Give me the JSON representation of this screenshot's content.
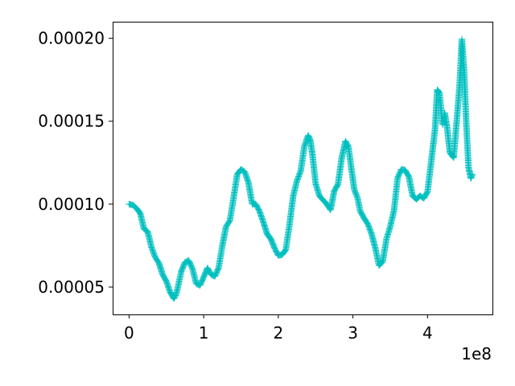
{
  "chart_data": {
    "type": "line",
    "title": "",
    "xlabel": "",
    "ylabel": "",
    "x_offset_label": "1e8",
    "xlim": [
      -0.22,
      4.87
    ],
    "ylim": [
      3.35e-05,
      0.00021
    ],
    "x_ticks": [
      0,
      1,
      2,
      3,
      4
    ],
    "x_tick_labels": [
      "0",
      "1",
      "2",
      "3",
      "4"
    ],
    "y_ticks": [
      5e-05,
      0.0001,
      0.00015,
      0.0002
    ],
    "y_tick_labels": [
      "0.00005",
      "0.00010",
      "0.00015",
      "0.00020"
    ],
    "grid": false,
    "legend": "none",
    "series": [
      {
        "color": "#00bfbf",
        "marker": "plus",
        "x_unit_note": "x in units of 1e8",
        "x": [
          0.0,
          0.05,
          0.1,
          0.15,
          0.2,
          0.25,
          0.3,
          0.35,
          0.4,
          0.45,
          0.5,
          0.55,
          0.6,
          0.63,
          0.66,
          0.7,
          0.75,
          0.8,
          0.85,
          0.9,
          0.95,
          1.0,
          1.05,
          1.1,
          1.15,
          1.2,
          1.25,
          1.3,
          1.35,
          1.4,
          1.45,
          1.5,
          1.55,
          1.6,
          1.65,
          1.7,
          1.75,
          1.8,
          1.85,
          1.9,
          1.95,
          2.0,
          2.05,
          2.1,
          2.15,
          2.2,
          2.25,
          2.3,
          2.35,
          2.4,
          2.43,
          2.46,
          2.5,
          2.55,
          2.6,
          2.65,
          2.7,
          2.75,
          2.8,
          2.85,
          2.9,
          2.94,
          2.98,
          3.02,
          3.06,
          3.1,
          3.15,
          3.2,
          3.25,
          3.3,
          3.35,
          3.4,
          3.45,
          3.5,
          3.55,
          3.6,
          3.65,
          3.7,
          3.75,
          3.8,
          3.85,
          3.9,
          3.95,
          4.0,
          4.05,
          4.1,
          4.13,
          4.16,
          4.2,
          4.23,
          4.26,
          4.3,
          4.35,
          4.4,
          4.43,
          4.46,
          4.49,
          4.52,
          4.55,
          4.58,
          4.6
        ],
        "y": [
          0.0001,
          9.95e-05,
          9.75e-05,
          9.45e-05,
          8.5e-05,
          8.35e-05,
          7.4e-05,
          6.8e-05,
          6.45e-05,
          5.75e-05,
          5.35e-05,
          4.7e-05,
          4.3e-05,
          4.55e-05,
          5.1e-05,
          5.95e-05,
          6.5e-05,
          6.6e-05,
          6.1e-05,
          5.2e-05,
          5.1e-05,
          5.6e-05,
          6.15e-05,
          5.75e-05,
          5.65e-05,
          6.15e-05,
          7.5e-05,
          8.65e-05,
          9e-05,
          0.0001035,
          0.000118,
          0.000121,
          0.0001195,
          0.000113,
          0.0001,
          0.0001,
          9.55e-05,
          8.9e-05,
          8.2e-05,
          7.9e-05,
          7.35e-05,
          6.9e-05,
          6.95e-05,
          7.25e-05,
          8.75e-05,
          0.000105,
          0.000114,
          0.00012,
          0.000135,
          0.0001415,
          0.0001385,
          0.000129,
          0.0001125,
          0.000105,
          0.0001025,
          0.0001,
          9.65e-05,
          0.000108,
          0.000112,
          0.000128,
          0.000138,
          0.0001345,
          0.000121,
          0.0001085,
          0.000104,
          9.55e-05,
          9.15e-05,
          8.8e-05,
          8.2e-05,
          7.35e-05,
          6.3e-05,
          6.55e-05,
          7.9e-05,
          8.65e-05,
          9.6e-05,
          0.000116,
          0.000121,
          0.0001205,
          0.0001165,
          0.000105,
          0.000103,
          0.000105,
          0.0001035,
          0.0001075,
          0.000126,
          0.000145,
          0.000169,
          0.000167,
          0.000148,
          0.000155,
          0.000147,
          0.000131,
          0.000128,
          0.000155,
          0.000172,
          0.0001995,
          0.0001805,
          0.000148,
          0.000122,
          0.0001155,
          0.000118
        ]
      }
    ]
  }
}
